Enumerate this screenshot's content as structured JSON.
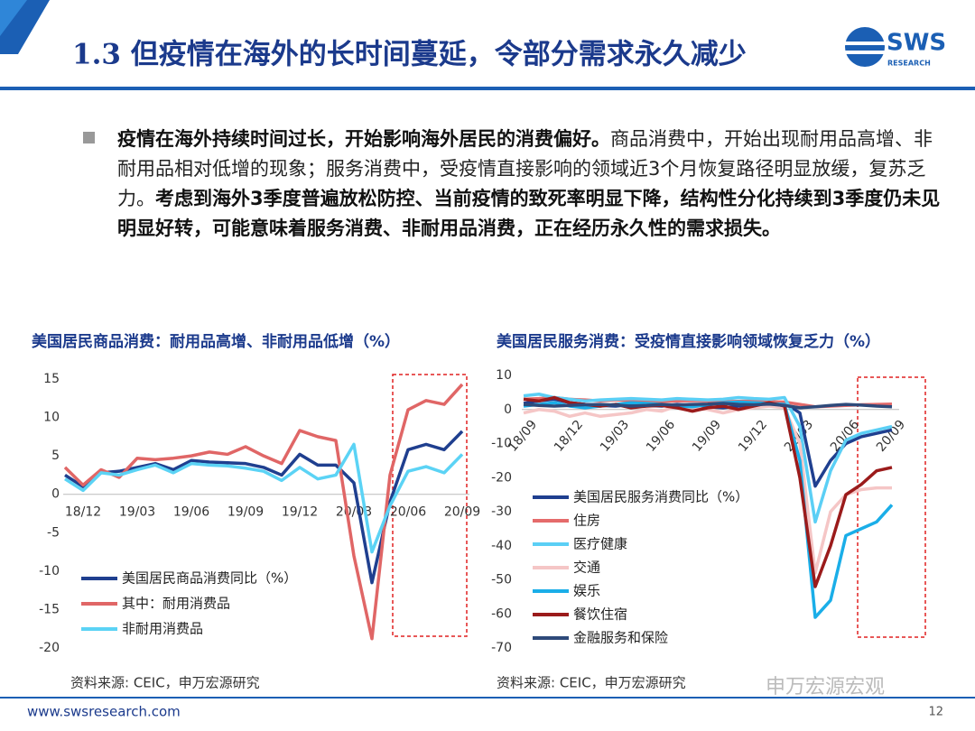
{
  "header": {
    "title": "1.3 但疫情在海外的长时间蔓延，令部分需求永久减少"
  },
  "logo": {
    "name": "SWS",
    "sub": "RESEARCH"
  },
  "bullet": {
    "segments": [
      "疫情在海外持续时间过长，开始影响海外居民的消费偏好。",
      "商品消费中，开始出现耐用品高增、非耐用品相对低增的现象；服务消费中，受疫情直接影响的领域近3个月恢复路径明显放缓，复苏乏力。",
      "考虑到海外3季度普遍放松防控、当前疫情的致死率明显下降，结构性分化持续到3季度仍未见明显好转，可能意味着服务消费、非耐用品消费，正在经历永久性的需求损失。"
    ]
  },
  "chart_data": [
    {
      "type": "line",
      "title": "美国居民商品消费：耐用品高增、非耐用品低增（%）",
      "source": "资料来源: CEIC，申万宏源研究",
      "categories": [
        null,
        "18/12",
        null,
        null,
        "19/03",
        null,
        null,
        "19/06",
        null,
        null,
        "19/09",
        null,
        null,
        "19/12",
        null,
        null,
        "20/03",
        null,
        null,
        "20/06",
        null,
        null,
        "20/09"
      ],
      "ylim": [
        -20,
        15
      ],
      "yticks": [
        15,
        10,
        5,
        0,
        -5,
        -10,
        -15,
        -20
      ],
      "series": [
        {
          "name": "美国居民商品消费同比（%）",
          "color": "#1f3f8f",
          "values": [
            2.5,
            1.0,
            2.8,
            3.0,
            3.5,
            4.0,
            3.2,
            4.4,
            4.2,
            4.1,
            4.0,
            3.5,
            2.5,
            5.2,
            3.8,
            3.8,
            1.5,
            -11.5,
            -1.0,
            5.8,
            6.5,
            5.8,
            8.2
          ]
        },
        {
          "name": "其中：耐用消费品",
          "color": "#e06666",
          "values": [
            3.5,
            1.2,
            3.2,
            2.2,
            4.7,
            4.5,
            4.7,
            5.0,
            5.5,
            5.2,
            6.2,
            5.0,
            4.0,
            8.3,
            7.5,
            7.0,
            -8.0,
            -18.8,
            2.5,
            11.0,
            12.2,
            11.7,
            14.3
          ]
        },
        {
          "name": "非耐用消费品",
          "color": "#5bd3f5",
          "values": [
            2.0,
            0.5,
            2.8,
            2.5,
            3.2,
            3.8,
            2.8,
            4.0,
            3.8,
            3.7,
            3.4,
            3.0,
            1.8,
            3.5,
            2.0,
            2.5,
            6.5,
            -7.5,
            -1.5,
            3.0,
            3.6,
            2.8,
            5.2
          ]
        }
      ]
    },
    {
      "type": "line",
      "title": "美国居民服务消费：受疫情直接影响领域恢复乏力（%）",
      "source": "资料来源: CEIC，申万宏源研究",
      "categories": [
        "18/09",
        null,
        null,
        "18/12",
        null,
        null,
        "19/03",
        null,
        null,
        "19/06",
        null,
        null,
        "19/09",
        null,
        null,
        "19/12",
        null,
        null,
        "20/03",
        null,
        null,
        "20/06",
        null,
        null,
        "20/09"
      ],
      "ylim": [
        -70,
        10
      ],
      "yticks": [
        10,
        0,
        -10,
        -20,
        -30,
        -40,
        -50,
        -60,
        -70
      ],
      "series": [
        {
          "name": "美国居民服务消费同比（%）",
          "color": "#1f3f8f",
          "values": [
            1.8,
            2.5,
            3.0,
            2.0,
            1.5,
            1.2,
            1.0,
            1.5,
            1.2,
            1.0,
            1.5,
            1.2,
            0.8,
            0.5,
            1.0,
            1.5,
            1.8,
            2.0,
            -1.0,
            -22.5,
            -15.0,
            -10.0,
            -8.0,
            -7.0,
            -6.0
          ]
        },
        {
          "name": "住房",
          "color": "#e56b6b",
          "values": [
            3,
            3.2,
            3.5,
            3.0,
            2.8,
            2.5,
            2.8,
            2.6,
            2.5,
            2.4,
            2.5,
            2.6,
            2.5,
            2.3,
            2.4,
            2.5,
            2.3,
            2.2,
            1.5,
            0.8,
            1.0,
            1.2,
            1.4,
            1.5,
            1.6
          ]
        },
        {
          "name": "医疗健康",
          "color": "#5bcff5",
          "values": [
            4,
            4.5,
            3.5,
            3.0,
            2.5,
            2.8,
            3.0,
            3.2,
            3.0,
            2.8,
            3.2,
            3.0,
            2.8,
            3.0,
            3.5,
            3.2,
            3.0,
            3.5,
            -5,
            -33,
            -18,
            -9,
            -7,
            -6,
            -5
          ]
        },
        {
          "name": "交通",
          "color": "#f5c6c6",
          "values": [
            -1,
            0,
            -0.5,
            -2,
            -1,
            -2,
            -1.5,
            -1,
            0,
            -0.5,
            1,
            0.5,
            0,
            -1,
            0,
            0.5,
            1,
            0.5,
            -10,
            -48,
            -30,
            -25,
            -23.5,
            -23,
            -23
          ]
        },
        {
          "name": "娱乐",
          "color": "#1aaee8",
          "values": [
            1,
            1.5,
            2,
            1,
            0.5,
            1,
            1.5,
            2,
            1.8,
            1.5,
            1,
            0.8,
            1.5,
            2,
            2.2,
            2,
            1.8,
            1.5,
            -15,
            -61,
            -56,
            -37,
            -35,
            -33,
            -28
          ]
        },
        {
          "name": "餐饮住宿",
          "color": "#9b1b1b",
          "values": [
            3,
            2.5,
            3.5,
            2,
            1.5,
            1,
            1.5,
            0.5,
            1,
            1.2,
            0.5,
            -0.5,
            0.5,
            1,
            0,
            1,
            2,
            1,
            -20,
            -52,
            -40,
            -25,
            -22,
            -18,
            -17
          ]
        },
        {
          "name": "金融服务和保险",
          "color": "#2e4a7a",
          "values": [
            1.5,
            1.2,
            1.0,
            1.2,
            1.4,
            1.5,
            1.3,
            1.0,
            1.2,
            1.5,
            1.3,
            1.5,
            1.6,
            1.8,
            1.5,
            1.4,
            1.6,
            1.2,
            0.5,
            0.8,
            1.2,
            1.5,
            1.3,
            1.0,
            0.8
          ]
        }
      ]
    }
  ],
  "watermark": "申万宏源宏观",
  "footer": {
    "url": "www.swsresearch.com",
    "page": "12"
  }
}
